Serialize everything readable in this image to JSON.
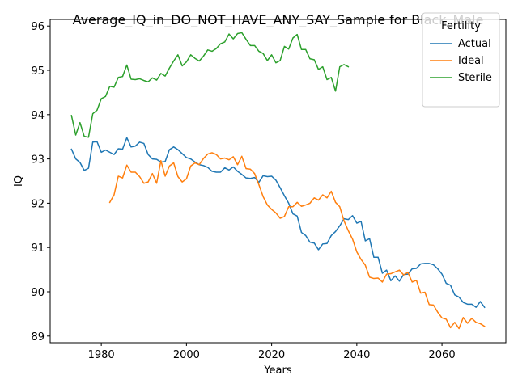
{
  "chart_data": {
    "type": "line",
    "title": "Average_IQ_in_DO_NOT_HAVE_ANY_SAY_Sample for Black_Male",
    "xlabel": "Years",
    "ylabel": "IQ",
    "xlim": [
      1968,
      2075
    ],
    "ylim": [
      88.85,
      96.15
    ],
    "xticks": [
      1980,
      2000,
      2020,
      2040,
      2060
    ],
    "yticks": [
      89,
      90,
      91,
      92,
      93,
      94,
      95,
      96
    ],
    "legend": {
      "title": "Fertility",
      "position": "top-right"
    },
    "series": [
      {
        "name": "Actual",
        "color": "#1f77b4",
        "x": [
          1973,
          1974,
          1975,
          1976,
          1977,
          1978,
          1979,
          1980,
          1981,
          1982,
          1983,
          1984,
          1985,
          1986,
          1987,
          1988,
          1989,
          1990,
          1991,
          1992,
          1993,
          1994,
          1995,
          1996,
          1997,
          1998,
          1999,
          2000,
          2001,
          2002,
          2003,
          2004,
          2005,
          2006,
          2007,
          2008,
          2009,
          2010,
          2011,
          2012,
          2013,
          2014,
          2015,
          2016,
          2017,
          2018,
          2019,
          2020,
          2021,
          2022,
          2023,
          2024,
          2025,
          2026,
          2027,
          2028,
          2029,
          2030,
          2031,
          2032,
          2033,
          2034,
          2035,
          2036,
          2037,
          2038,
          2039,
          2040,
          2041,
          2042,
          2043,
          2044,
          2045,
          2046,
          2047,
          2048,
          2049,
          2050,
          2051,
          2052,
          2053,
          2054,
          2055,
          2056,
          2057,
          2058,
          2059,
          2060,
          2061,
          2062,
          2063,
          2064,
          2065,
          2066,
          2067,
          2068,
          2069,
          2070
        ],
        "y": [
          93.22,
          93.0,
          92.92,
          92.74,
          92.79,
          93.38,
          93.39,
          93.15,
          93.2,
          93.15,
          93.1,
          93.23,
          93.22,
          93.48,
          93.27,
          93.29,
          93.38,
          93.35,
          93.1,
          93.0,
          92.99,
          92.93,
          92.94,
          93.21,
          93.27,
          93.21,
          93.12,
          93.03,
          93.0,
          92.93,
          92.87,
          92.85,
          92.81,
          92.72,
          92.7,
          92.7,
          92.8,
          92.75,
          92.82,
          92.72,
          92.65,
          92.57,
          92.56,
          92.58,
          92.47,
          92.62,
          92.6,
          92.61,
          92.52,
          92.35,
          92.17,
          92.0,
          91.76,
          91.71,
          91.34,
          91.27,
          91.12,
          91.1,
          90.95,
          91.08,
          91.09,
          91.27,
          91.36,
          91.49,
          91.65,
          91.63,
          91.72,
          91.55,
          91.59,
          91.15,
          91.2,
          90.78,
          90.78,
          90.42,
          90.49,
          90.25,
          90.36,
          90.24,
          90.39,
          90.4,
          90.52,
          90.53,
          90.63,
          90.64,
          90.64,
          90.61,
          90.52,
          90.4,
          90.19,
          90.15,
          89.93,
          89.88,
          89.76,
          89.72,
          89.72,
          89.65,
          89.78,
          89.65
        ]
      },
      {
        "name": "Ideal",
        "color": "#ff7f0e",
        "x": [
          1982,
          1983,
          1984,
          1985,
          1986,
          1987,
          1988,
          1989,
          1990,
          1991,
          1992,
          1993,
          1994,
          1995,
          1996,
          1997,
          1998,
          1999,
          2000,
          2001,
          2002,
          2003,
          2004,
          2005,
          2006,
          2007,
          2008,
          2009,
          2010,
          2011,
          2012,
          2013,
          2014,
          2015,
          2016,
          2017,
          2018,
          2019,
          2020,
          2021,
          2022,
          2023,
          2024,
          2025,
          2026,
          2027,
          2028,
          2029,
          2030,
          2031,
          2032,
          2033,
          2034,
          2035,
          2036,
          2037,
          2038,
          2039,
          2040,
          2041,
          2042,
          2043,
          2044,
          2045,
          2046,
          2047,
          2048,
          2049,
          2050,
          2051,
          2052,
          2053,
          2054,
          2055,
          2056,
          2057,
          2058,
          2059,
          2060,
          2061,
          2062,
          2063,
          2064,
          2065,
          2066,
          2067,
          2068,
          2069,
          2070
        ],
        "y": [
          92.02,
          92.19,
          92.61,
          92.57,
          92.86,
          92.7,
          92.7,
          92.6,
          92.45,
          92.48,
          92.67,
          92.45,
          92.96,
          92.61,
          92.84,
          92.91,
          92.6,
          92.48,
          92.55,
          92.84,
          92.91,
          92.87,
          93.01,
          93.11,
          93.14,
          93.1,
          93.0,
          93.02,
          92.98,
          93.05,
          92.87,
          93.06,
          92.78,
          92.77,
          92.67,
          92.42,
          92.15,
          91.96,
          91.86,
          91.78,
          91.66,
          91.7,
          91.92,
          91.92,
          92.02,
          91.93,
          91.96,
          92.0,
          92.12,
          92.07,
          92.19,
          92.12,
          92.27,
          92.02,
          91.92,
          91.6,
          91.38,
          91.19,
          90.9,
          90.73,
          90.6,
          90.33,
          90.3,
          90.31,
          90.22,
          90.4,
          90.41,
          90.45,
          90.49,
          90.38,
          90.44,
          90.22,
          90.26,
          89.97,
          89.99,
          89.71,
          89.7,
          89.54,
          89.41,
          89.38,
          89.19,
          89.31,
          89.17,
          89.42,
          89.29,
          89.4,
          89.31,
          89.28,
          89.22
        ]
      },
      {
        "name": "Sterile",
        "color": "#2ca02c",
        "x": [
          1973,
          1974,
          1975,
          1976,
          1977,
          1978,
          1979,
          1980,
          1981,
          1982,
          1983,
          1984,
          1985,
          1986,
          1987,
          1988,
          1989,
          1990,
          1991,
          1992,
          1993,
          1994,
          1995,
          1996,
          1997,
          1998,
          1999,
          2000,
          2001,
          2002,
          2003,
          2004,
          2005,
          2006,
          2007,
          2008,
          2009,
          2010,
          2011,
          2012,
          2013,
          2014,
          2015,
          2016,
          2017,
          2018,
          2019,
          2020,
          2021,
          2022,
          2023,
          2024,
          2025,
          2026,
          2027,
          2028,
          2029,
          2030,
          2031,
          2032,
          2033,
          2034,
          2035,
          2036,
          2037,
          2038
        ],
        "y": [
          93.98,
          93.54,
          93.82,
          93.51,
          93.49,
          94.02,
          94.1,
          94.36,
          94.41,
          94.64,
          94.62,
          94.84,
          94.86,
          95.12,
          94.8,
          94.79,
          94.81,
          94.77,
          94.74,
          94.83,
          94.78,
          94.93,
          94.87,
          95.05,
          95.21,
          95.35,
          95.1,
          95.19,
          95.35,
          95.27,
          95.21,
          95.32,
          95.46,
          95.43,
          95.49,
          95.6,
          95.64,
          95.82,
          95.71,
          95.83,
          95.85,
          95.7,
          95.56,
          95.56,
          95.43,
          95.38,
          95.22,
          95.35,
          95.17,
          95.22,
          95.54,
          95.48,
          95.73,
          95.81,
          95.47,
          95.47,
          95.26,
          95.24,
          95.02,
          95.08,
          94.79,
          94.84,
          94.53,
          95.08,
          95.13,
          95.08
        ]
      }
    ]
  }
}
